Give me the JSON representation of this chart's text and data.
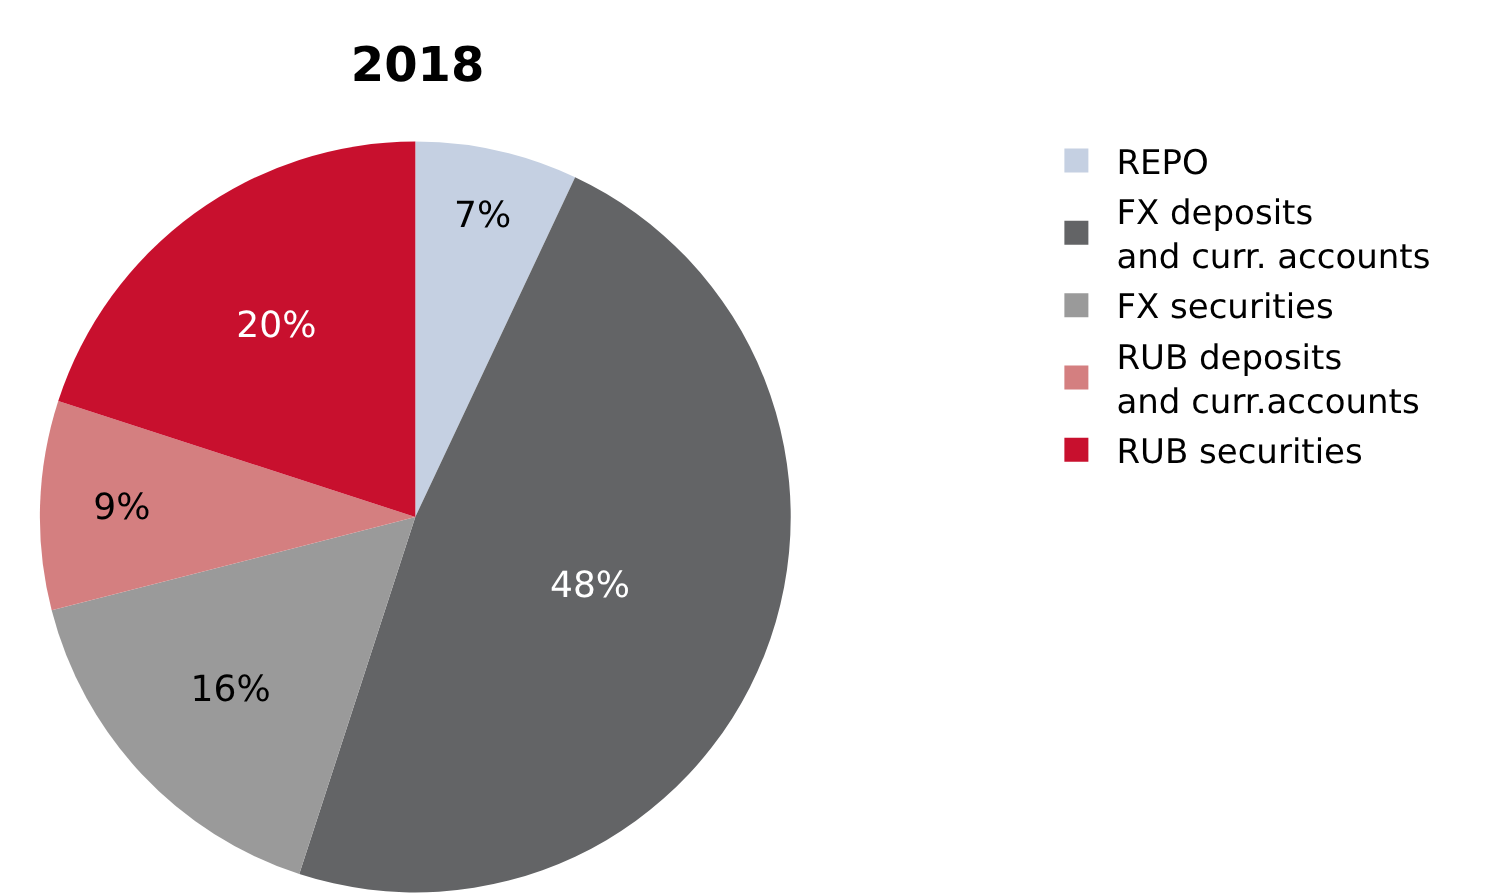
{
  "chart_data": {
    "type": "pie",
    "title": "2018",
    "categories": [
      "REPO",
      "FX deposits\nand curr. accounts",
      "FX securities",
      "RUB deposits\nand curr.accounts",
      "RUB securities"
    ],
    "values": [
      7,
      48,
      16,
      9,
      20
    ],
    "colors": [
      "#c5d0e2",
      "#636466",
      "#9a9a9a",
      "#d47f80",
      "#c8102e"
    ],
    "value_labels": [
      "7%",
      "48%",
      "16%",
      "9%",
      "20%"
    ],
    "legend": "right"
  }
}
